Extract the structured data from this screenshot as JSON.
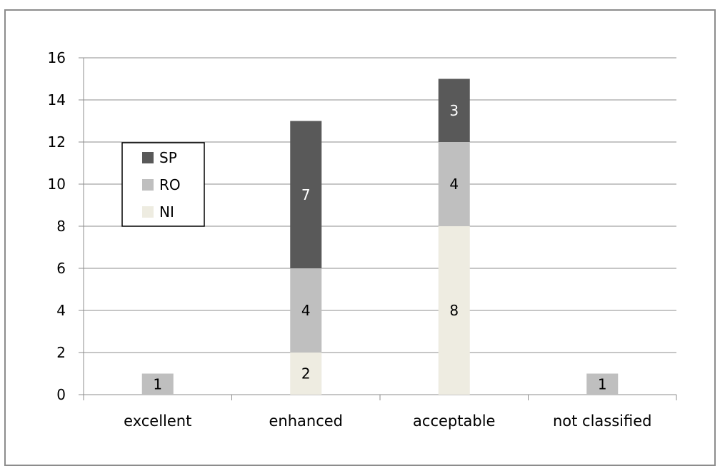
{
  "chart_data": {
    "type": "bar",
    "stacked": true,
    "categories": [
      "excellent",
      "enhanced",
      "acceptable",
      "not classified"
    ],
    "series": [
      {
        "name": "NI",
        "color": "#eeece1",
        "values": [
          0,
          2,
          8,
          0
        ]
      },
      {
        "name": "RO",
        "color": "#bfbfbf",
        "values": [
          1,
          4,
          4,
          1
        ]
      },
      {
        "name": "SP",
        "color": "#595959",
        "values": [
          0,
          7,
          3,
          0
        ]
      }
    ],
    "data_labels": [
      {
        "category": 0,
        "series": "RO",
        "text": "1"
      },
      {
        "category": 1,
        "series": "NI",
        "text": "2"
      },
      {
        "category": 1,
        "series": "RO",
        "text": "4"
      },
      {
        "category": 1,
        "series": "SP",
        "text": "7"
      },
      {
        "category": 2,
        "series": "NI",
        "text": "8"
      },
      {
        "category": 2,
        "series": "RO",
        "text": "4"
      },
      {
        "category": 2,
        "series": "SP",
        "text": "3"
      },
      {
        "category": 3,
        "series": "RO",
        "text": "1"
      }
    ],
    "ylim": [
      0,
      16
    ],
    "yticks": [
      "0",
      "2",
      "4",
      "6",
      "8",
      "10",
      "12",
      "14",
      "16"
    ],
    "grid": true,
    "legend": {
      "placement": "left",
      "order": [
        "SP",
        "RO",
        "NI"
      ]
    },
    "title": "",
    "xlabel": "",
    "ylabel": ""
  }
}
